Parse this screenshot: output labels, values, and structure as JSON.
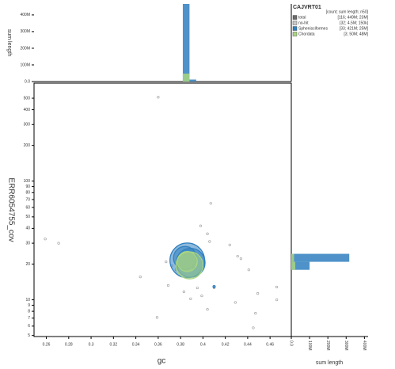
{
  "chart_data": [
    {
      "type": "scatter",
      "xlabel": "gc",
      "ylabel": "ERR6054755_cov",
      "xlim": [
        0.249,
        0.479
      ],
      "ylim": [
        4.9,
        670
      ],
      "log_y": true,
      "xticks": [
        0.26,
        0.28,
        0.3,
        0.32,
        0.34,
        0.36,
        0.38,
        0.4,
        0.42,
        0.44,
        0.46
      ],
      "yticks": [
        5,
        6,
        7,
        8,
        9,
        10,
        20,
        30,
        40,
        50,
        60,
        70,
        80,
        90,
        100,
        200,
        300,
        400,
        500
      ],
      "legend_title": "CAJVRT01",
      "legend_header": "[count; sum length; n50]",
      "total": {
        "name": "total",
        "stats": "[116; 449M; 23M]",
        "color": "#6b6b6b"
      },
      "series": [
        {
          "name": "no-hit",
          "stats": "[32; 4.5M; 150k]",
          "color": "#c8c8c8",
          "x": [
            0.36,
            0.259,
            0.271,
            0.407,
            0.398,
            0.404,
            0.406,
            0.431,
            0.434,
            0.424,
            0.441,
            0.367,
            0.372,
            0.376,
            0.344,
            0.369,
            0.395,
            0.383,
            0.399,
            0.389,
            0.429,
            0.404,
            0.41,
            0.449,
            0.466,
            0.466,
            0.447,
            0.445,
            0.359
          ],
          "y": [
            510,
            32.6,
            30,
            65,
            42,
            36,
            31,
            23.3,
            22.2,
            29,
            17.9,
            20.9,
            19.4,
            17.9,
            15.6,
            13.2,
            12.6,
            11.7,
            10.8,
            10.2,
            9.5,
            8.3,
            12.6,
            11.3,
            12.8,
            10,
            7.7,
            5.8,
            7.1
          ],
          "size": [
            150000,
            200000,
            150000,
            300000,
            250000,
            200000,
            150000,
            400000,
            200000,
            250000,
            600000,
            200000,
            150000,
            300000,
            150000,
            200000,
            300000,
            250000,
            200000,
            600000,
            400000,
            300000,
            200000,
            200000,
            150000,
            300000,
            200000,
            150000,
            150000
          ]
        },
        {
          "name": "Sphenisciformes",
          "stats": "[33; 421M; 25M]",
          "color": "#2f7fbf",
          "x": [
            0.386,
            0.389,
            0.384,
            0.41,
            0.392
          ],
          "y": [
            21.5,
            20.5,
            22.5,
            12.9,
            18.5
          ],
          "size": [
            360000000,
            250000000,
            160000000,
            1500000,
            1200000
          ]
        },
        {
          "name": "Chordata",
          "stats": "[3; 50M; 48M]",
          "color": "#a9d67f",
          "x": [
            0.388,
            0.386
          ],
          "y": [
            19.5,
            21
          ],
          "size": [
            220000000,
            120000000
          ]
        }
      ]
    },
    {
      "type": "histogram",
      "ylabel": "sum length",
      "ylim": [
        0,
        466000000
      ],
      "yticks": [
        {
          "value": 0,
          "label": "0.0"
        },
        {
          "value": 100000000,
          "label": "100M"
        },
        {
          "value": 200000000,
          "label": "200M"
        },
        {
          "value": 300000000,
          "label": "300M"
        },
        {
          "value": 400000000,
          "label": "400M"
        }
      ],
      "bins": [
        0.382,
        0.388,
        0.394
      ],
      "series": [
        {
          "name": "Sphenisciformes",
          "color": "#2f7fbf",
          "values": [
            470000000,
            12000000
          ]
        },
        {
          "name": "Chordata",
          "color": "#a9d67f",
          "values": [
            48000000,
            0
          ]
        }
      ]
    },
    {
      "type": "histogram",
      "xlabel": "sum length",
      "orientation": "horizontal",
      "xlim": [
        0,
        420000000
      ],
      "xticks": [
        {
          "value": 0,
          "label": "0.0"
        },
        {
          "value": 100000000,
          "label": "100M"
        },
        {
          "value": 200000000,
          "label": "200M"
        },
        {
          "value": 300000000,
          "label": "300M"
        },
        {
          "value": 400000000,
          "label": "400M"
        }
      ],
      "bins": [
        17.9,
        20.9,
        24.4
      ],
      "series": [
        {
          "name": "Sphenisciformes",
          "color": "#2f7fbf",
          "values": [
            100000000,
            317000000
          ]
        },
        {
          "name": "Chordata",
          "color": "#a9d67f",
          "values": [
            22000000,
            15000000
          ]
        }
      ]
    }
  ]
}
